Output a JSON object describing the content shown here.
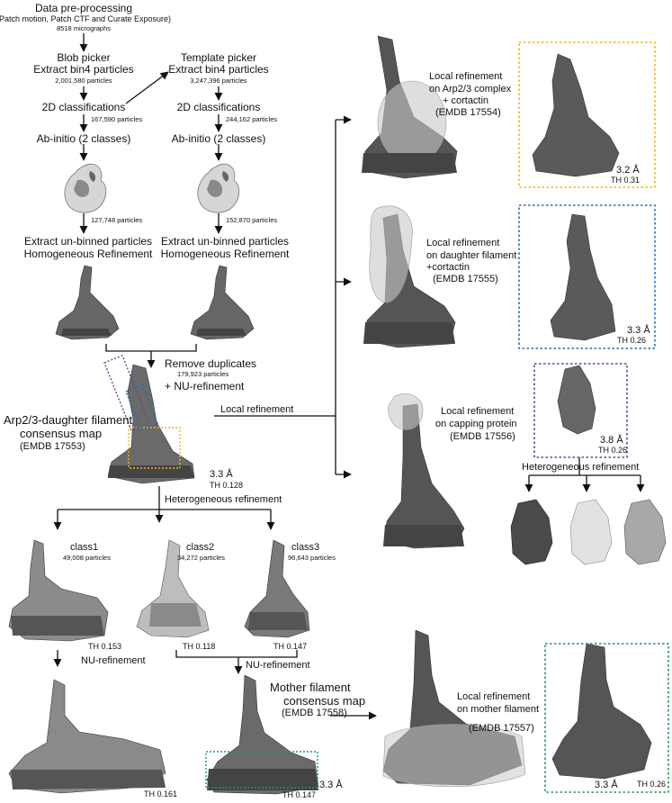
{
  "pre": {
    "title": "Data pre-processing",
    "subtitle": "(Patch motion, Patch CTF and Curate Exposure)",
    "count": "8518 micrographs"
  },
  "blob": {
    "line1": "Blob picker",
    "line2": "Extract bin4 particles",
    "count": "2,001,580 particles",
    "class2d": "2D classifications",
    "count2": "167,590 particles",
    "abinitio": "Ab-initio (2 classes)",
    "count3": "127,748 particles",
    "extract1": "Extract un-binned particles",
    "extract2": "Homogeneous Refinement"
  },
  "template": {
    "line1": "Template picker",
    "line2": "Extract bin4 particles",
    "count": "3,247,396 particles",
    "class2d": "2D classifications",
    "count2": "244,162 particles",
    "abinitio": "Ab-initio (2 classes)",
    "count3": "152,870 particles",
    "extract1": "Extract un-binned particles",
    "extract2": "Homogeneous Refinement"
  },
  "merge": {
    "remove": "Remove duplicates",
    "count": "179,923 particles",
    "nu": "+ NU-refinement"
  },
  "consensus": {
    "line1": "Arp2/3-daughter filament",
    "line2": "consensus map",
    "emdb": "(EMDB 17553)",
    "res": "3.3 Å",
    "th": "TH 0.128"
  },
  "local_refinement_label": "Local refinement",
  "hetero_label": "Heterogeneous refinement",
  "classes": [
    {
      "name": "class1",
      "count": "49,008 particles",
      "th": "TH 0.153"
    },
    {
      "name": "class2",
      "count": "34,272 particles",
      "th": "TH  0.118"
    },
    {
      "name": "class3",
      "count": "96,643 particles",
      "th": "TH 0.147"
    }
  ],
  "nu_left": "NU-refinement",
  "nu_mid": "NU-refinement",
  "final_left_th": "TH 0.161",
  "mother": {
    "line1": "Mother filament",
    "line2": "consensus map",
    "emdb": "(EMDB 17558)",
    "res": "3.3 Å",
    "th": "TH 0.147"
  },
  "local1": {
    "line1": "Local refinement",
    "line2": "on Arp2/3 complex",
    "line3": "+ cortactin",
    "emdb": "(EMDB 17554)",
    "res": "3.2 Å",
    "th": "TH 0.31"
  },
  "local2": {
    "line1": "Local refinement",
    "line2": "on daughter filament",
    "line3": "+cortactin",
    "emdb": "(EMDB 17555)",
    "res": "3.3 Å",
    "th": "TH  0.26"
  },
  "local3": {
    "line1": "Local refinement",
    "line2": "on capping protein",
    "emdb": "(EMDB 17556)",
    "res": "3.8 Å",
    "th": "TH 0.26",
    "hetero": "Heterogeneous refinement"
  },
  "local4": {
    "line1": "Local refinement",
    "line2": "on mother filament",
    "emdb": "(EMDB 17557)",
    "res": "3.3 Å",
    "th": "TH 0.26"
  },
  "colors": {
    "orange": "#f5b21d",
    "blue": "#1f6fb6",
    "purple": "#6d3f95",
    "green": "#1e9a52",
    "map_dark": "#4a4a4a",
    "map_mid": "#7a7a7a",
    "map_light": "#c9c9c9",
    "mask": "#bdbdbd"
  }
}
